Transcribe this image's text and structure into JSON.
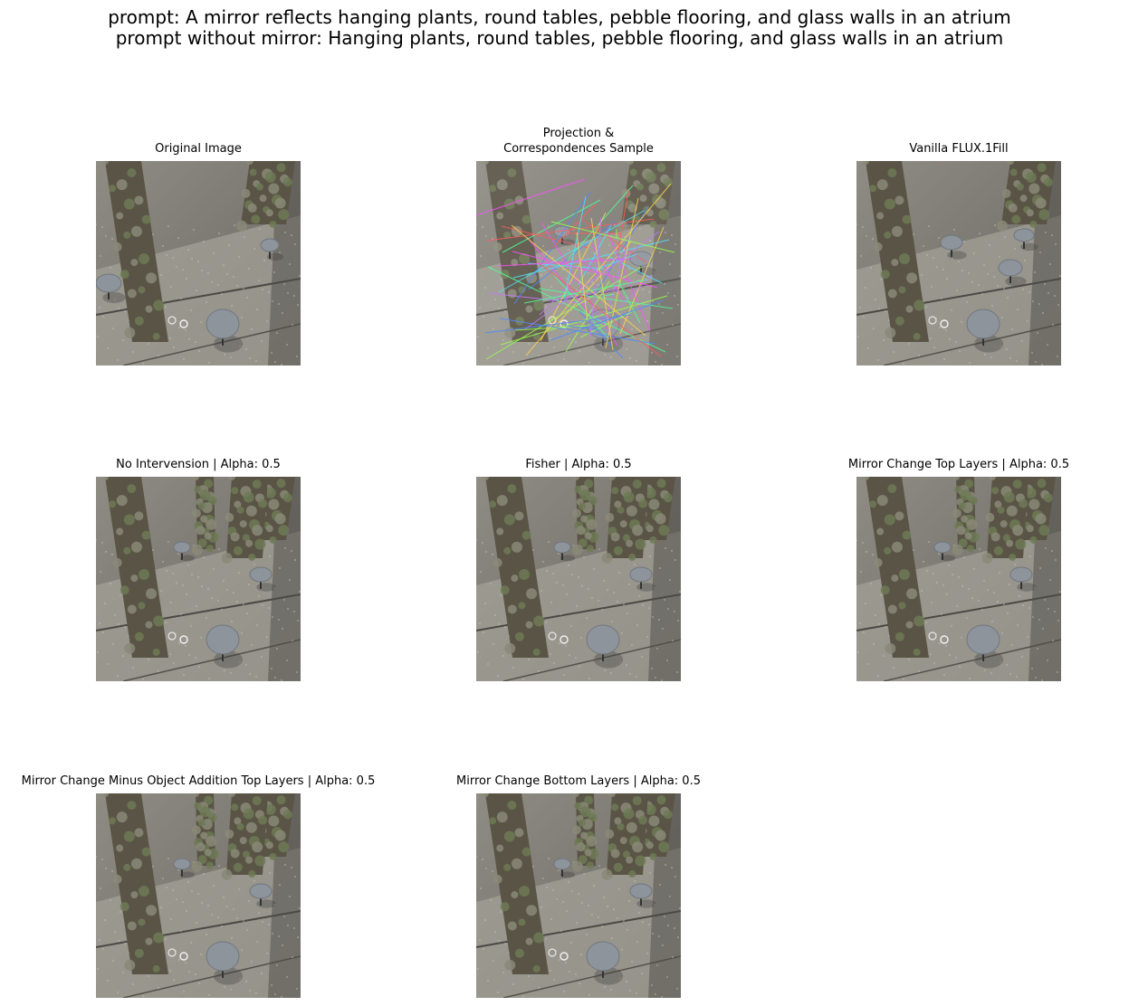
{
  "figure": {
    "suptitle_line1": "prompt: A mirror reflects hanging plants, round tables, pebble flooring, and glass walls in an atrium",
    "suptitle_line2": "prompt without mirror: Hanging plants, round tables, pebble flooring, and glass walls in an atrium"
  },
  "panels": [
    {
      "title": "Original Image",
      "variant": "original"
    },
    {
      "title_line1": "Projection &",
      "title_line2": "Correspondences Sample",
      "variant": "correspondences"
    },
    {
      "title": "Vanilla FLUX.1Fill",
      "variant": "vanilla"
    },
    {
      "title": "No Intervension | Alpha: 0.5",
      "variant": "mirror"
    },
    {
      "title": "Fisher | Alpha: 0.5",
      "variant": "mirror"
    },
    {
      "title": "Mirror Change Top Layers | Alpha: 0.5",
      "variant": "mirror"
    },
    {
      "title": "Mirror Change Minus Object Addition Top Layers | Alpha: 0.5",
      "variant": "mirror"
    },
    {
      "title": "Mirror Change Bottom Layers | Alpha: 0.5",
      "variant": "mirror"
    }
  ]
}
